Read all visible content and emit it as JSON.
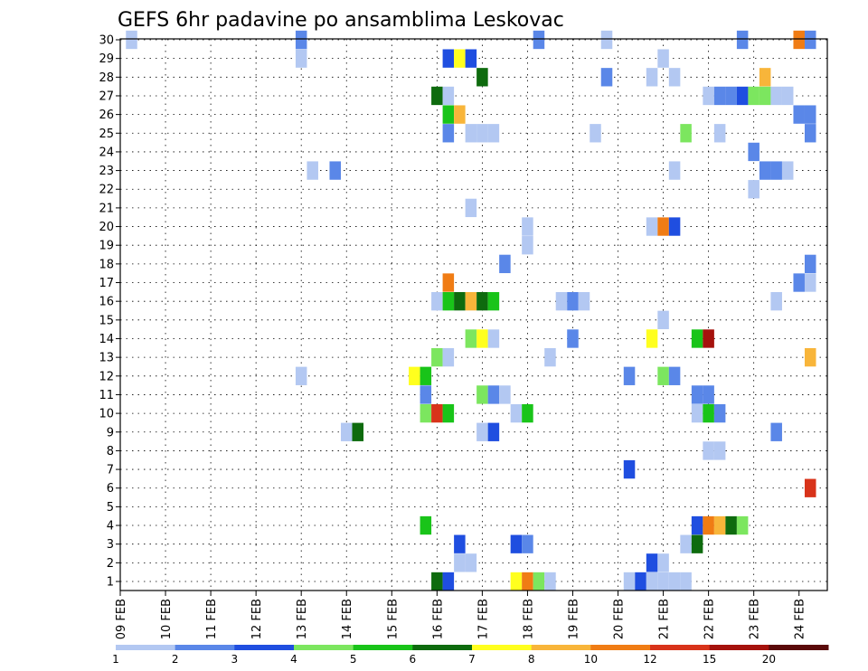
{
  "chart_data": {
    "type": "heatmap",
    "title": "GEFS 6hr padavine po ansamblima Leskovac",
    "x_tick_labels": [
      "09 FEB",
      "10 FEB",
      "11 FEB",
      "12 FEB",
      "13 FEB",
      "14 FEB",
      "15 FEB",
      "16 FEB",
      "17 FEB",
      "18 FEB",
      "19 FEB",
      "20 FEB",
      "21 FEB",
      "22 FEB",
      "23 FEB",
      "24 FEB"
    ],
    "y_tick_labels": [
      "1",
      "2",
      "3",
      "4",
      "5",
      "6",
      "7",
      "8",
      "9",
      "10",
      "11",
      "12",
      "13",
      "14",
      "15",
      "16",
      "17",
      "18",
      "19",
      "20",
      "21",
      "22",
      "23",
      "24",
      "25",
      "26",
      "27",
      "28",
      "29",
      "30"
    ],
    "y_range": [
      1,
      30
    ],
    "x_range_days": [
      0,
      15
    ],
    "time_step_hours": 6,
    "grid": "dotted",
    "colorbar": {
      "labels": [
        "1",
        "2",
        "3",
        "4",
        "5",
        "6",
        "7",
        "8",
        "10",
        "12",
        "15",
        "20"
      ],
      "colors": [
        "#b3c8f2",
        "#5a87e8",
        "#1f4ee0",
        "#7ce65f",
        "#19c419",
        "#0e6b0e",
        "#ffff1e",
        "#f8b53a",
        "#f07c14",
        "#d8331a",
        "#a5120d",
        "#5a0a0a"
      ]
    },
    "cells": [
      [
        1,
        30,
        0
      ],
      [
        16,
        30,
        1
      ],
      [
        37,
        30,
        1
      ],
      [
        43,
        30,
        0
      ],
      [
        55,
        30,
        1
      ],
      [
        60,
        30,
        8
      ],
      [
        61,
        30,
        1
      ],
      [
        16,
        29,
        0
      ],
      [
        29,
        29,
        2
      ],
      [
        30,
        29,
        6
      ],
      [
        31,
        29,
        2
      ],
      [
        48,
        29,
        0
      ],
      [
        32,
        28,
        5
      ],
      [
        43,
        28,
        1
      ],
      [
        47,
        28,
        0
      ],
      [
        49,
        28,
        0
      ],
      [
        57,
        28,
        7
      ],
      [
        28,
        27,
        5
      ],
      [
        29,
        27,
        0
      ],
      [
        52,
        27,
        0
      ],
      [
        53,
        27,
        1
      ],
      [
        54,
        27,
        1
      ],
      [
        55,
        27,
        2
      ],
      [
        56,
        27,
        3
      ],
      [
        57,
        27,
        3
      ],
      [
        58,
        27,
        0
      ],
      [
        59,
        27,
        0
      ],
      [
        29,
        26,
        4
      ],
      [
        30,
        26,
        7
      ],
      [
        60,
        26,
        1
      ],
      [
        61,
        26,
        1
      ],
      [
        29,
        25,
        1
      ],
      [
        31,
        25,
        0
      ],
      [
        32,
        25,
        0
      ],
      [
        33,
        25,
        0
      ],
      [
        42,
        25,
        0
      ],
      [
        50,
        25,
        3
      ],
      [
        53,
        25,
        0
      ],
      [
        61,
        25,
        1
      ],
      [
        56,
        24,
        1
      ],
      [
        17,
        23,
        0
      ],
      [
        19,
        23,
        1
      ],
      [
        49,
        23,
        0
      ],
      [
        57,
        23,
        1
      ],
      [
        58,
        23,
        1
      ],
      [
        59,
        23,
        0
      ],
      [
        56,
        22,
        0
      ],
      [
        31,
        21,
        0
      ],
      [
        36,
        20,
        0
      ],
      [
        47,
        20,
        0
      ],
      [
        48,
        20,
        8
      ],
      [
        49,
        20,
        2
      ],
      [
        36,
        19,
        0
      ],
      [
        34,
        18,
        1
      ],
      [
        61,
        18,
        1
      ],
      [
        29,
        17,
        8
      ],
      [
        60,
        17,
        1
      ],
      [
        61,
        17,
        0
      ],
      [
        28,
        16,
        0
      ],
      [
        29,
        16,
        4
      ],
      [
        30,
        16,
        5
      ],
      [
        31,
        16,
        7
      ],
      [
        32,
        16,
        5
      ],
      [
        33,
        16,
        4
      ],
      [
        39,
        16,
        0
      ],
      [
        40,
        16,
        1
      ],
      [
        41,
        16,
        0
      ],
      [
        58,
        16,
        0
      ],
      [
        48,
        15,
        0
      ],
      [
        31,
        14,
        3
      ],
      [
        32,
        14,
        6
      ],
      [
        33,
        14,
        0
      ],
      [
        40,
        14,
        1
      ],
      [
        47,
        14,
        6
      ],
      [
        51,
        14,
        4
      ],
      [
        52,
        14,
        10
      ],
      [
        28,
        13,
        3
      ],
      [
        29,
        13,
        0
      ],
      [
        38,
        13,
        0
      ],
      [
        61,
        13,
        7
      ],
      [
        16,
        12,
        0
      ],
      [
        26,
        12,
        6
      ],
      [
        27,
        12,
        4
      ],
      [
        45,
        12,
        1
      ],
      [
        48,
        12,
        3
      ],
      [
        49,
        12,
        1
      ],
      [
        27,
        11,
        1
      ],
      [
        32,
        11,
        3
      ],
      [
        33,
        11,
        1
      ],
      [
        34,
        11,
        0
      ],
      [
        51,
        11,
        1
      ],
      [
        52,
        11,
        1
      ],
      [
        27,
        10,
        3
      ],
      [
        28,
        10,
        9
      ],
      [
        29,
        10,
        4
      ],
      [
        35,
        10,
        0
      ],
      [
        36,
        10,
        4
      ],
      [
        51,
        10,
        0
      ],
      [
        52,
        10,
        4
      ],
      [
        53,
        10,
        1
      ],
      [
        20,
        9,
        0
      ],
      [
        21,
        9,
        5
      ],
      [
        32,
        9,
        0
      ],
      [
        33,
        9,
        2
      ],
      [
        58,
        9,
        1
      ],
      [
        52,
        8,
        0
      ],
      [
        53,
        8,
        0
      ],
      [
        45,
        7,
        2
      ],
      [
        61,
        6,
        9
      ],
      [
        27,
        4,
        4
      ],
      [
        51,
        4,
        2
      ],
      [
        52,
        4,
        8
      ],
      [
        53,
        4,
        7
      ],
      [
        54,
        4,
        5
      ],
      [
        55,
        4,
        3
      ],
      [
        30,
        3,
        2
      ],
      [
        35,
        3,
        2
      ],
      [
        36,
        3,
        1
      ],
      [
        50,
        3,
        0
      ],
      [
        51,
        3,
        5
      ],
      [
        30,
        2,
        0
      ],
      [
        31,
        2,
        0
      ],
      [
        47,
        2,
        2
      ],
      [
        48,
        2,
        0
      ],
      [
        28,
        1,
        5
      ],
      [
        29,
        1,
        2
      ],
      [
        35,
        1,
        6
      ],
      [
        36,
        1,
        8
      ],
      [
        37,
        1,
        3
      ],
      [
        38,
        1,
        0
      ],
      [
        45,
        1,
        0
      ],
      [
        46,
        1,
        2
      ],
      [
        47,
        1,
        0
      ],
      [
        48,
        1,
        0
      ],
      [
        49,
        1,
        0
      ],
      [
        50,
        1,
        0
      ]
    ]
  }
}
